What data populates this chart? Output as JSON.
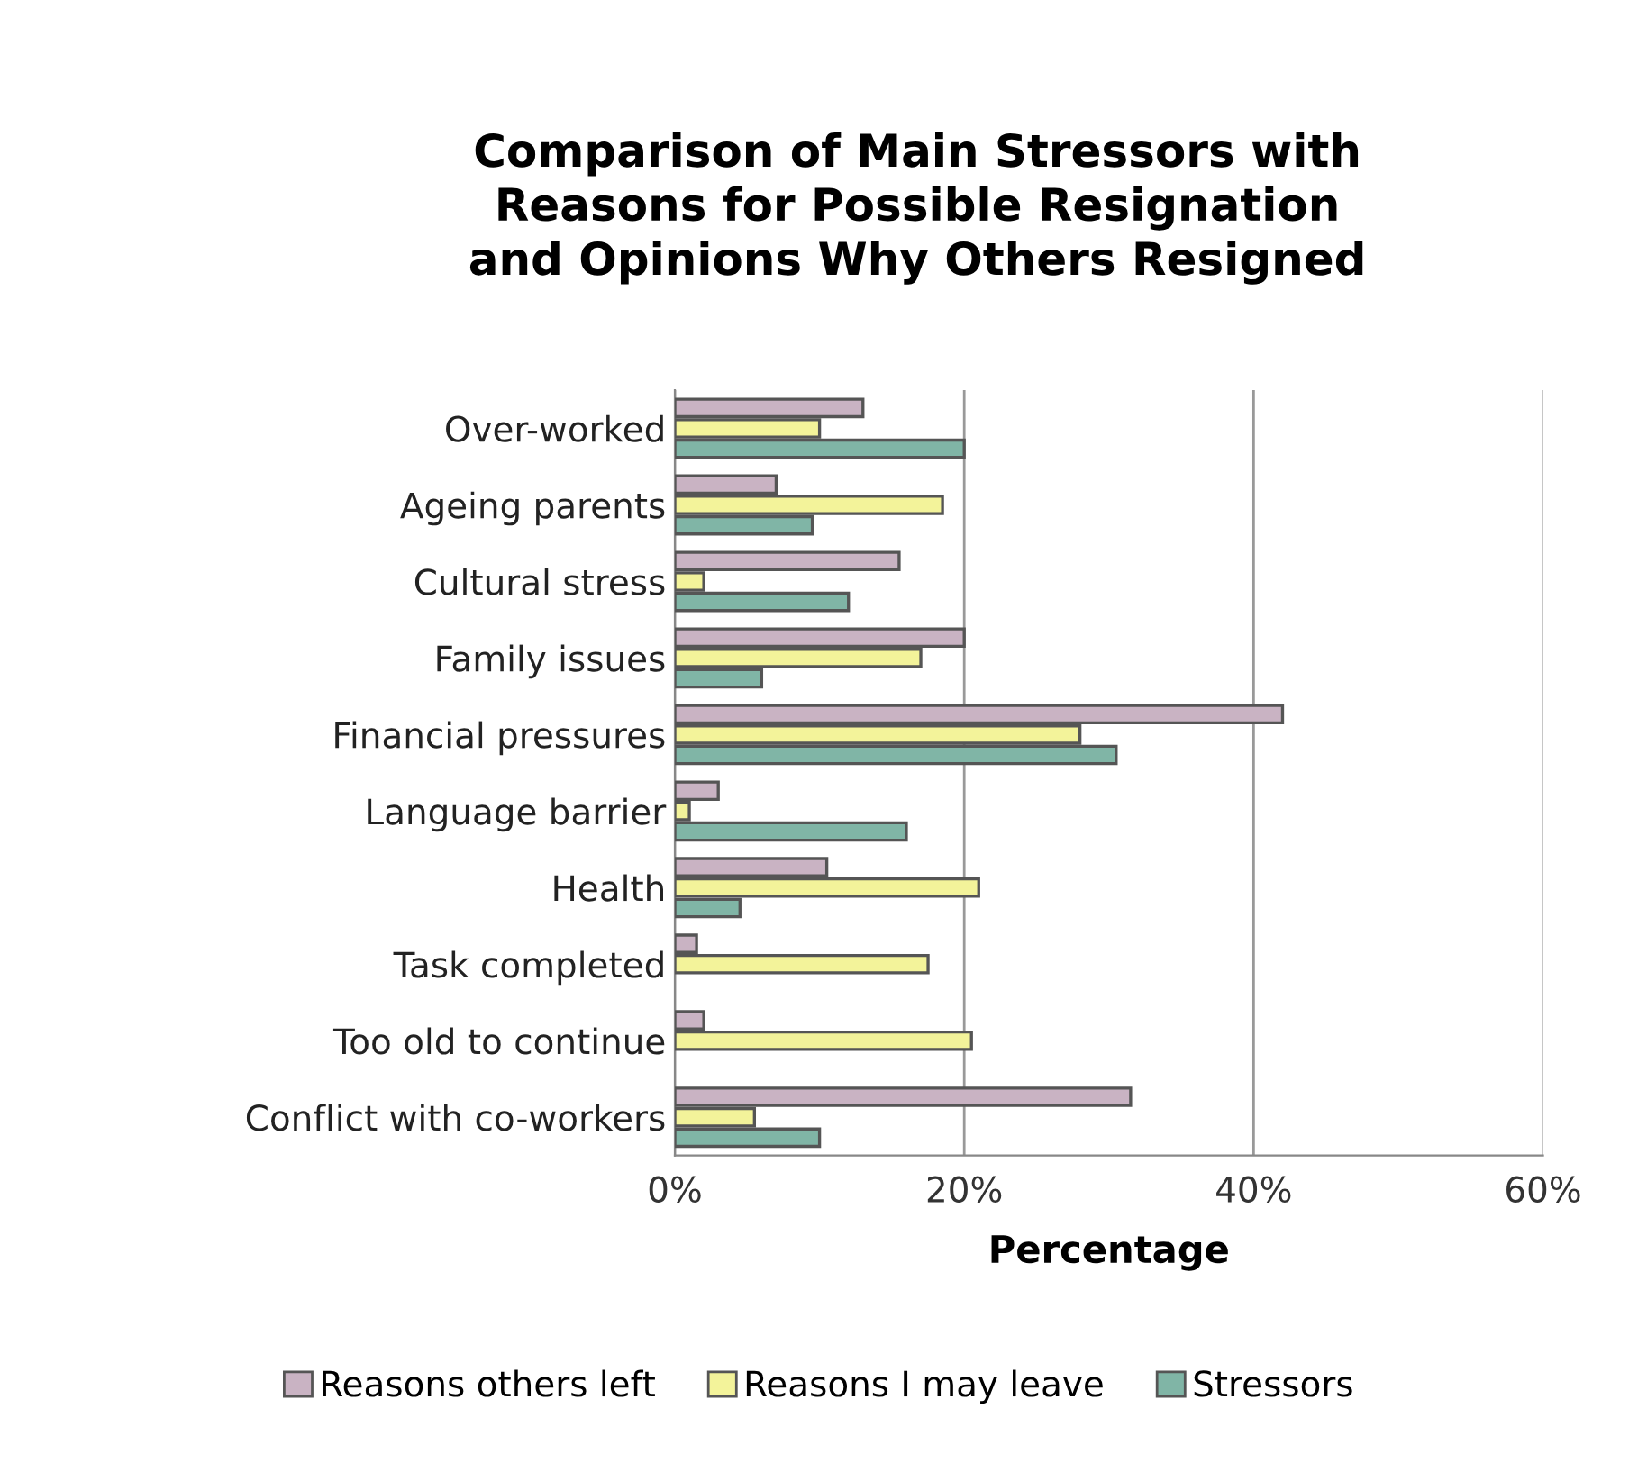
{
  "chart_data": {
    "type": "bar",
    "orientation": "horizontal",
    "title": "Comparison of Main Stressors with\nReasons for Possible Resignation\nand Opinions Why Others Resigned",
    "xlabel": "Percentage",
    "categories": [
      "Over-worked",
      "Ageing parents",
      "Cultural stress",
      "Family issues",
      "Financial pressures",
      "Language barrier",
      "Health",
      "Task completed",
      "Too old to continue",
      "Conflict with co-workers"
    ],
    "series": [
      {
        "name": "Reasons others left",
        "color": "#c9b3c3",
        "values": [
          13,
          7,
          15.5,
          20,
          42,
          3,
          10.5,
          1.5,
          2,
          31.5
        ]
      },
      {
        "name": "Reasons I may leave",
        "color": "#f3f39a",
        "values": [
          10,
          18.5,
          2,
          17,
          28,
          1,
          21,
          17.5,
          20.5,
          5.5
        ]
      },
      {
        "name": "Stressors",
        "color": "#80b5a6",
        "values": [
          20,
          9.5,
          12,
          6,
          30.5,
          16,
          4.5,
          0,
          0,
          10
        ]
      }
    ],
    "xlim": [
      0,
      60
    ],
    "xticks": [
      {
        "value": 0,
        "label": "0%"
      },
      {
        "value": 20,
        "label": "20%"
      },
      {
        "value": 40,
        "label": "40%"
      },
      {
        "value": 60,
        "label": "60%"
      }
    ],
    "grid": "x",
    "legend": "bottom"
  }
}
